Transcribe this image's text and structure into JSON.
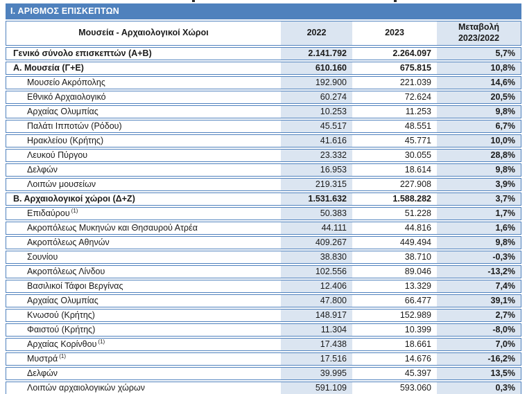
{
  "title": "Ι. ΑΡΙΘΜΟΣ ΕΠΙΣΚΕΠΤΩΝ",
  "columns": {
    "name": "Μουσεία - Αρχαιολογικοί Χώροι",
    "y2022": "2022",
    "y2023": "2023",
    "change": "Μεταβολή 2023/2022"
  },
  "colors": {
    "title_bar": "#4f81bd",
    "border": "#4f81bd",
    "shaded_column": "#dbe5f1",
    "text": "#1a1a1a"
  },
  "table": {
    "rows": [
      {
        "name": "Γενικό σύνολο επισκεπτών (Α+Β)",
        "footnote": "",
        "y2022": "2.141.792",
        "y2023": "2.264.097",
        "change": "5,7%"
      },
      {
        "name": "Α. Μουσεία (Γ+Ε)",
        "footnote": "",
        "y2022": "610.160",
        "y2023": "675.815",
        "change": "10,8%"
      },
      {
        "name": "Μουσείο Ακρόπολης",
        "footnote": "",
        "y2022": "192.900",
        "y2023": "221.039",
        "change": "14,6%"
      },
      {
        "name": "Εθνικό Αρχαιολογικό",
        "footnote": "",
        "y2022": "60.274",
        "y2023": "72.624",
        "change": "20,5%"
      },
      {
        "name": "Αρχαίας Ολυμπίας",
        "footnote": "",
        "y2022": "10.253",
        "y2023": "11.253",
        "change": "9,8%"
      },
      {
        "name": "Παλάτι Ιπποτών (Ρόδου)",
        "footnote": "",
        "y2022": "45.517",
        "y2023": "48.551",
        "change": "6,7%"
      },
      {
        "name": "Ηρακλείου (Κρήτης)",
        "footnote": "",
        "y2022": "41.616",
        "y2023": "45.771",
        "change": "10,0%"
      },
      {
        "name": "Λευκού Πύργου",
        "footnote": "",
        "y2022": "23.332",
        "y2023": "30.055",
        "change": "28,8%"
      },
      {
        "name": "Δελφών",
        "footnote": "",
        "y2022": "16.953",
        "y2023": "18.614",
        "change": "9,8%"
      },
      {
        "name": "Λοιπών μουσείων",
        "footnote": "",
        "y2022": "219.315",
        "y2023": "227.908",
        "change": "3,9%"
      },
      {
        "name": "Β. Αρχαιολογικοί χώροι (Δ+Ζ)",
        "footnote": "",
        "y2022": "1.531.632",
        "y2023": "1.588.282",
        "change": "3,7%"
      },
      {
        "name": "Επιδαύρου",
        "footnote": "(1)",
        "y2022": "50.383",
        "y2023": "51.228",
        "change": "1,7%"
      },
      {
        "name": "Ακροπόλεως Μυκηνών και Θησαυρού Ατρέα",
        "footnote": "",
        "y2022": "44.111",
        "y2023": "44.816",
        "change": "1,6%"
      },
      {
        "name": "Ακροπόλεως Αθηνών",
        "footnote": "",
        "y2022": "409.267",
        "y2023": "449.494",
        "change": "9,8%"
      },
      {
        "name": "Σουνίου",
        "footnote": "",
        "y2022": "38.830",
        "y2023": "38.710",
        "change": "-0,3%"
      },
      {
        "name": "Ακροπόλεως Λίνδου",
        "footnote": "",
        "y2022": "102.556",
        "y2023": "89.046",
        "change": "-13,2%"
      },
      {
        "name": "Βασιλικοί Τάφοι Βεργίνας",
        "footnote": "",
        "y2022": "12.406",
        "y2023": "13.329",
        "change": "7,4%"
      },
      {
        "name": "Αρχαίας Ολυμπίας",
        "footnote": "",
        "y2022": "47.800",
        "y2023": "66.477",
        "change": "39,1%"
      },
      {
        "name": "Κνωσού (Κρήτης)",
        "footnote": "",
        "y2022": "148.917",
        "y2023": "152.989",
        "change": "2,7%"
      },
      {
        "name": "Φαιστού (Κρήτης)",
        "footnote": "",
        "y2022": "11.304",
        "y2023": "10.399",
        "change": "-8,0%"
      },
      {
        "name": "Αρχαίας Κορίνθου",
        "footnote": "(1)",
        "y2022": "17.438",
        "y2023": "18.661",
        "change": "7,0%"
      },
      {
        "name": "Μυστρά",
        "footnote": "(1)",
        "y2022": "17.516",
        "y2023": "14.676",
        "change": "-16,2%"
      },
      {
        "name": "Δελφών",
        "footnote": "",
        "y2022": "39.995",
        "y2023": "45.397",
        "change": "13,5%"
      },
      {
        "name": "Λοιπών αρχαιολογικών χώρων",
        "footnote": "",
        "y2022": "591.109",
        "y2023": "593.060",
        "change": "0,3%"
      }
    ]
  }
}
